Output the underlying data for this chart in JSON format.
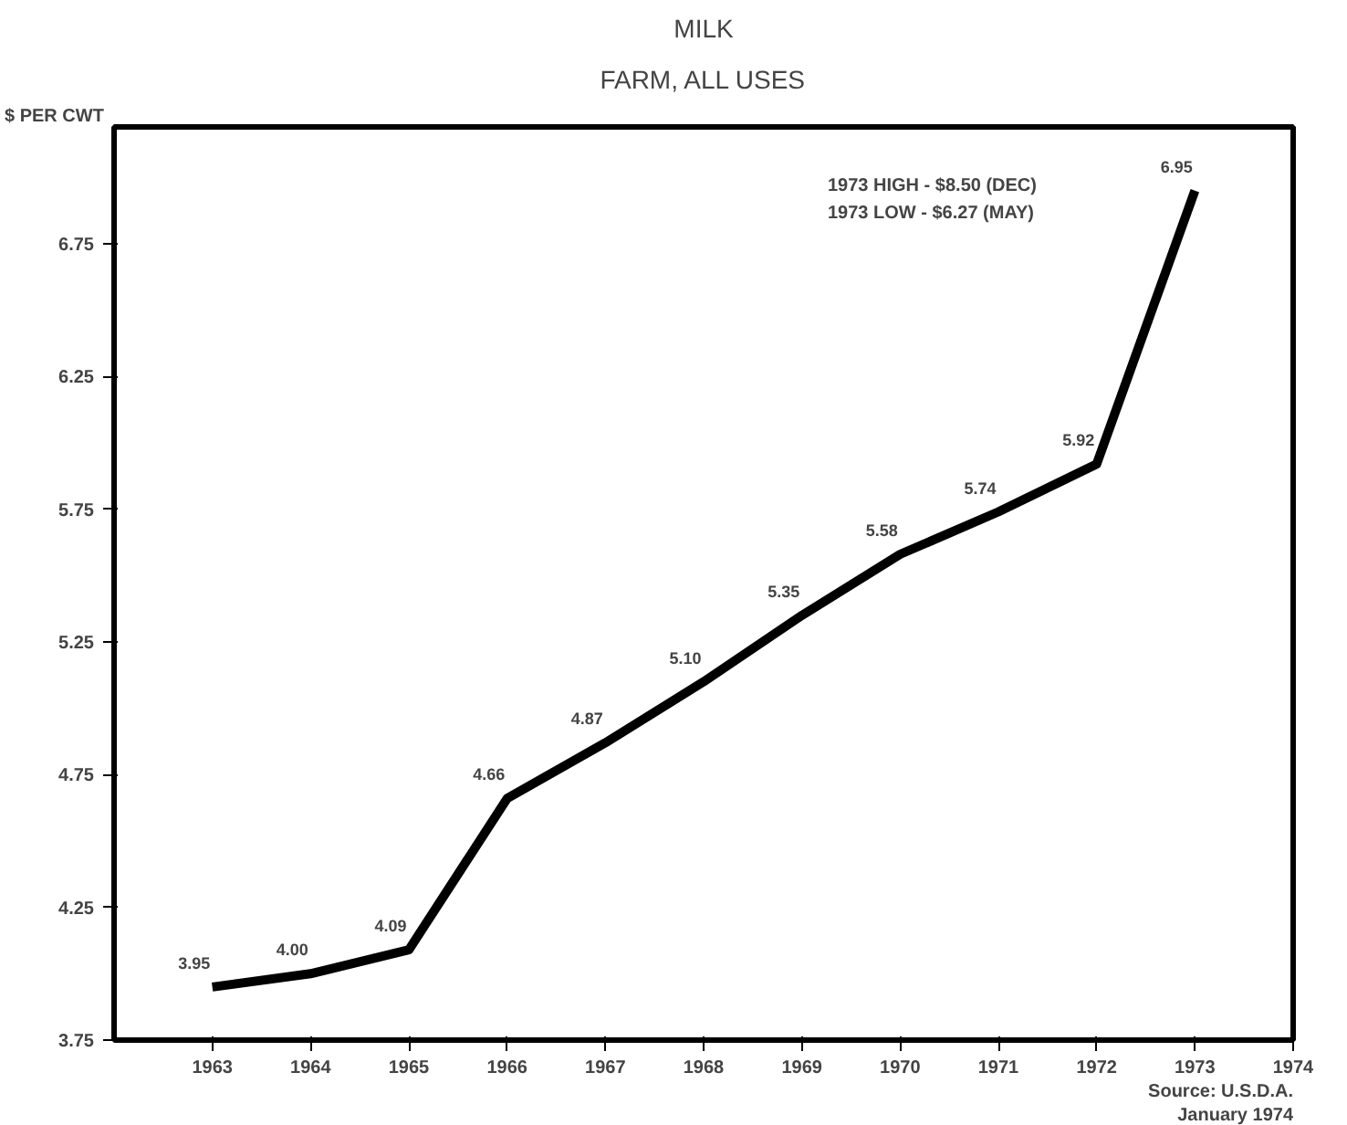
{
  "chart_data": {
    "type": "line",
    "title": "MILK",
    "subtitle": "FARM, ALL USES",
    "ylabel": "$ PER CWT",
    "x": [
      1963,
      1964,
      1965,
      1966,
      1967,
      1968,
      1969,
      1970,
      1971,
      1972,
      1973
    ],
    "series": [
      {
        "color": "#000000",
        "values": [
          3.95,
          4.0,
          4.09,
          4.66,
          4.87,
          5.1,
          5.35,
          5.58,
          5.74,
          5.92,
          6.95
        ],
        "value_labels": [
          "3.95",
          "4.00",
          "4.09",
          "4.66",
          "4.87",
          "5.10",
          "5.35",
          "5.58",
          "5.74",
          "5.92",
          "6.95"
        ]
      }
    ],
    "xlim": [
      1962,
      1974
    ],
    "xticks": [
      1963,
      1964,
      1965,
      1966,
      1967,
      1968,
      1969,
      1970,
      1971,
      1972,
      1973,
      1974
    ],
    "ylim": [
      3.75,
      7.19
    ],
    "yticks": [
      {
        "value": 3.75,
        "label": "3.75"
      },
      {
        "value": 4.25,
        "label": "4.25"
      },
      {
        "value": 4.75,
        "label": "4.75"
      },
      {
        "value": 5.25,
        "label": "5.25"
      },
      {
        "value": 5.75,
        "label": "5.75"
      },
      {
        "value": 6.25,
        "label": "6.25"
      },
      {
        "value": 6.75,
        "label": "6.75"
      }
    ],
    "annotations": [
      "1973 HIGH - $8.50 (DEC)",
      "1973 LOW - $6.27 (MAY)",
      "Source: U.S.D.A.",
      "January 1974"
    ],
    "grid": false,
    "marker": "none",
    "line_style": "solid",
    "data_labels": true
  }
}
